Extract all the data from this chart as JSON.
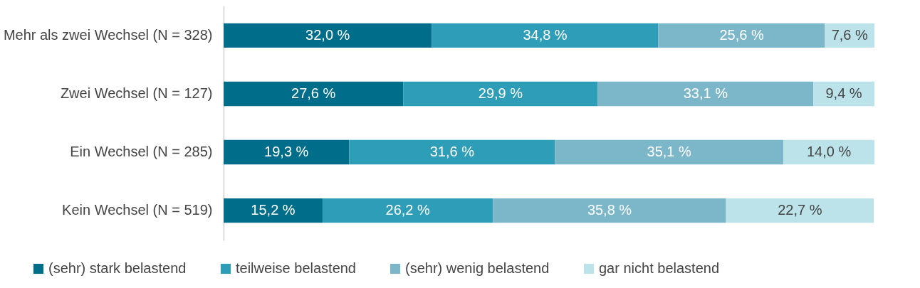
{
  "chart_data": {
    "type": "bar",
    "orientation": "horizontal",
    "stacked": true,
    "categories": [
      "Mehr als zwei Wechsel (N = 328)",
      "Zwei Wechsel (N = 127)",
      "Ein Wechsel (N = 285)",
      "Kein Wechsel (N = 519)"
    ],
    "xlim": [
      0,
      100
    ],
    "tick_labels": "y",
    "legend": "bottom",
    "series": [
      {
        "name": "(sehr) stark belastend",
        "color": "#006e8a",
        "values": [
          32.0,
          27.6,
          19.3,
          15.2
        ],
        "value_labels": [
          "32,0 %",
          "27,6 %",
          "19,3 %",
          "15,2 %"
        ]
      },
      {
        "name": "teilweise belastend",
        "color": "#2e9db7",
        "values": [
          34.8,
          29.9,
          31.6,
          26.2
        ],
        "value_labels": [
          "34,8 %",
          "29,9 %",
          "31,6 %",
          "26,2 %"
        ]
      },
      {
        "name": "(sehr) wenig belastend",
        "color": "#7bb6c9",
        "values": [
          25.6,
          33.1,
          35.1,
          35.8
        ],
        "value_labels": [
          "25,6 %",
          "33,1 %",
          "35,1 %",
          "35,8 %"
        ]
      },
      {
        "name": "gar nicht belastend",
        "color": "#bde3ea",
        "values": [
          7.6,
          9.4,
          14.0,
          22.7
        ],
        "value_labels": [
          "7,6 %",
          "9,4 %",
          "14,0 %",
          "22,7 %"
        ]
      }
    ]
  }
}
